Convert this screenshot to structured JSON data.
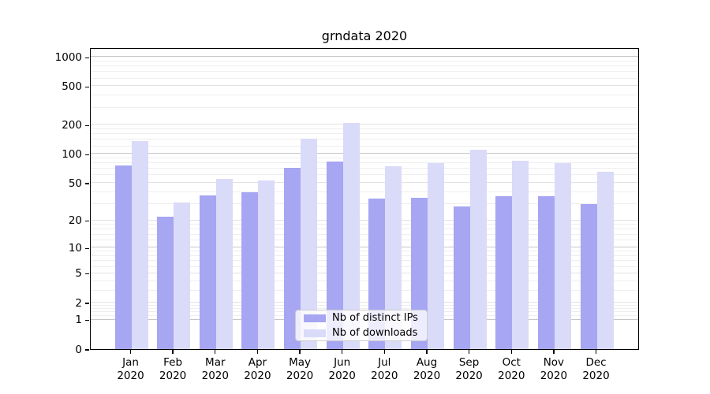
{
  "chart_data": {
    "type": "bar",
    "title": "grndata 2020",
    "categories": [
      "Jan",
      "Feb",
      "Mar",
      "Apr",
      "May",
      "Jun",
      "Jul",
      "Aug",
      "Sep",
      "Oct",
      "Nov",
      "Dec"
    ],
    "x_year": "2020",
    "series": [
      {
        "name": "Nb of distinct IPs",
        "color": "#a6a6f2",
        "values": [
          76,
          22,
          37,
          40,
          72,
          84,
          34,
          35,
          28,
          36,
          36,
          30
        ]
      },
      {
        "name": "Nb of downloads",
        "color": "#dadaf9",
        "values": [
          135,
          31,
          55,
          53,
          145,
          210,
          75,
          80,
          110,
          85,
          80,
          65
        ]
      }
    ],
    "y_scale": "log1p",
    "y_ticks": [
      0,
      1,
      2,
      5,
      10,
      20,
      50,
      100,
      200,
      500,
      1000
    ],
    "y_major_grid": [
      1,
      10,
      100,
      1000
    ],
    "y_mid_grid": [
      2,
      5,
      20,
      50,
      200,
      500
    ],
    "y_minor_grid": [
      1.2,
      1.4,
      1.6,
      1.8,
      3,
      4,
      6,
      7,
      8,
      9,
      12,
      14,
      16,
      18,
      30,
      40,
      60,
      70,
      80,
      90,
      120,
      140,
      160,
      180,
      300,
      400,
      600,
      700,
      800,
      900
    ],
    "y_max_at_top": 1256,
    "ylim": [
      0,
      1000
    ],
    "grid": "horizontal",
    "legend_position": "lower-center-inside",
    "colors": {
      "major_grid": "#c6c6c6",
      "mid_grid": "#e2e2e2",
      "minor_grid": "#eeeeee",
      "spine": "#000000",
      "background": "#ffffff"
    }
  }
}
